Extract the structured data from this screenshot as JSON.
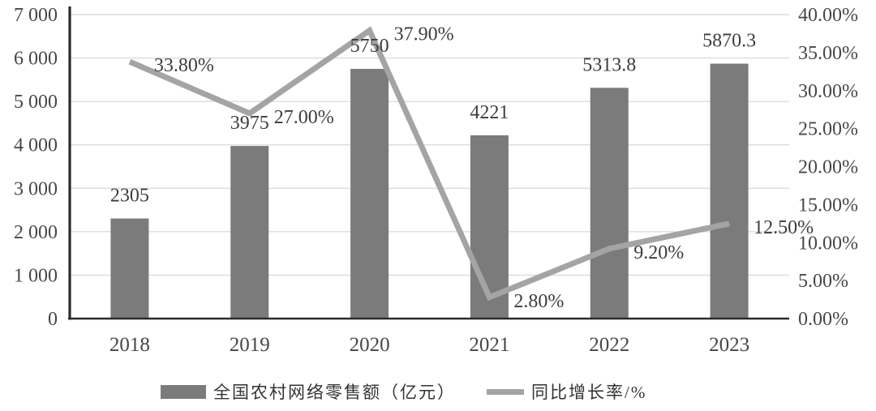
{
  "chart_data": {
    "type": "bar",
    "subtype": "combo-bar-line",
    "title": "",
    "categories": [
      "2018",
      "2019",
      "2020",
      "2021",
      "2022",
      "2023"
    ],
    "series": [
      {
        "name": "全国农村网络零售额（亿元）",
        "type": "bar",
        "axis": "left",
        "values": [
          2305,
          3975,
          5750,
          4221,
          5313.8,
          5870.3
        ],
        "labels": [
          "2305",
          "3975",
          "5750",
          "4221",
          "5313.8",
          "5870.3"
        ],
        "color": "#7b7b7b"
      },
      {
        "name": "同比增长率/%",
        "type": "line",
        "axis": "right",
        "values": [
          33.8,
          27.0,
          37.9,
          2.8,
          9.2,
          12.5
        ],
        "labels": [
          "33.80%",
          "27.00%",
          "37.90%",
          "2.80%",
          "9.20%",
          "12.50%"
        ],
        "color": "#a4a4a4"
      }
    ],
    "left_axis": {
      "min": 0,
      "max": 7000,
      "tick_labels": [
        "0",
        "1 000",
        "2 000",
        "3 000",
        "4 000",
        "5 000",
        "6 000",
        "7 000"
      ]
    },
    "right_axis": {
      "min": 0,
      "max": 40,
      "tick_labels": [
        "0.00%",
        "5.00%",
        "10.00%",
        "15.00%",
        "20.00%",
        "25.00%",
        "30.00%",
        "35.00%",
        "40.00%"
      ]
    },
    "grid": true,
    "legend_position": "bottom",
    "colors": {
      "bar": "#7b7b7b",
      "line": "#a4a4a4",
      "gridline": "#dcdcdc",
      "axis": "#2b2b2b",
      "text": "#474747"
    }
  },
  "legend": {
    "bar_label": "全国农村网络零售额（亿元）",
    "line_label": "同比增长率/%"
  }
}
